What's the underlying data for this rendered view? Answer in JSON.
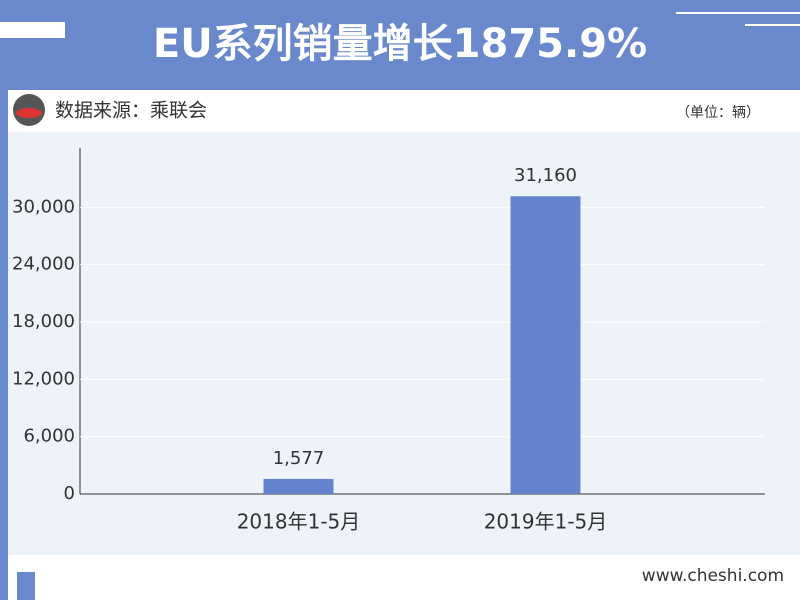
{
  "chart_data": {
    "type": "bar",
    "title": "EU系列销量增长1875.9%",
    "source": "数据来源：乘联会",
    "unit_note": "（单位：辆）",
    "footer": "www.cheshi.com",
    "categories": [
      "2018年1-5月",
      "2019年1-5月"
    ],
    "values": [
      1577,
      31160
    ],
    "value_labels": [
      "1,577",
      "31,160"
    ],
    "color": "#6384cc",
    "ylim": [
      0,
      36000
    ],
    "yticks": [
      0,
      {
        "value": 6000,
        "label": "6,000"
      },
      {
        "value": 12000,
        "label": "12,000"
      },
      {
        "value": 18000,
        "label": "18,000"
      },
      {
        "value": 24000,
        "label": "24,000"
      },
      {
        "value": 30000,
        "label": "30,000"
      }
    ],
    "grid": true
  }
}
